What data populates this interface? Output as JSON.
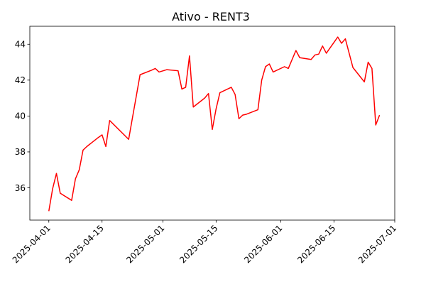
{
  "chart_data": {
    "type": "line",
    "title": "Ativo - RENT3",
    "xlabel": "",
    "ylabel": "",
    "grid": false,
    "legend": "none",
    "line_color": "#ff0000",
    "xlim": [
      "2025-03-27",
      "2025-07-01"
    ],
    "ylim": [
      34.2,
      45.0
    ],
    "x_ticks": [
      "2025-04-01",
      "2025-04-15",
      "2025-05-01",
      "2025-05-15",
      "2025-06-01",
      "2025-06-15",
      "2025-07-01"
    ],
    "y_ticks": [
      36,
      38,
      40,
      42,
      44
    ],
    "series": [
      {
        "x": [
          "2025-04-01",
          "2025-04-02",
          "2025-04-03",
          "2025-04-04",
          "2025-04-07",
          "2025-04-08",
          "2025-04-09",
          "2025-04-10",
          "2025-04-11",
          "2025-04-14",
          "2025-04-15",
          "2025-04-16",
          "2025-04-17",
          "2025-04-22",
          "2025-04-23",
          "2025-04-24",
          "2025-04-25",
          "2025-04-28",
          "2025-04-29",
          "2025-04-30",
          "2025-05-02",
          "2025-05-05",
          "2025-05-06",
          "2025-05-07",
          "2025-05-08",
          "2025-05-09",
          "2025-05-12",
          "2025-05-13",
          "2025-05-14",
          "2025-05-15",
          "2025-05-16",
          "2025-05-19",
          "2025-05-20",
          "2025-05-21",
          "2025-05-22",
          "2025-05-23",
          "2025-05-26",
          "2025-05-27",
          "2025-05-28",
          "2025-05-29",
          "2025-05-30",
          "2025-06-02",
          "2025-06-03",
          "2025-06-04",
          "2025-06-05",
          "2025-06-06",
          "2025-06-09",
          "2025-06-10",
          "2025-06-11",
          "2025-06-12",
          "2025-06-13",
          "2025-06-16",
          "2025-06-17",
          "2025-06-18",
          "2025-06-20",
          "2025-06-23",
          "2025-06-24",
          "2025-06-25",
          "2025-06-26",
          "2025-06-27"
        ],
        "values": [
          34.7,
          35.95,
          36.8,
          35.7,
          35.3,
          36.5,
          37.0,
          38.1,
          38.3,
          38.8,
          38.95,
          38.3,
          39.75,
          38.7,
          39.9,
          41.1,
          42.3,
          42.55,
          42.65,
          42.45,
          42.58,
          42.52,
          41.5,
          41.6,
          43.35,
          40.5,
          41.0,
          41.25,
          39.25,
          40.4,
          41.3,
          41.6,
          41.2,
          39.85,
          40.05,
          40.1,
          40.35,
          42.0,
          42.75,
          42.9,
          42.45,
          42.75,
          42.65,
          43.15,
          43.65,
          43.25,
          43.15,
          43.4,
          43.45,
          43.9,
          43.5,
          44.4,
          44.05,
          44.3,
          42.7,
          41.9,
          43.0,
          42.65,
          39.5,
          40.05
        ]
      }
    ]
  }
}
